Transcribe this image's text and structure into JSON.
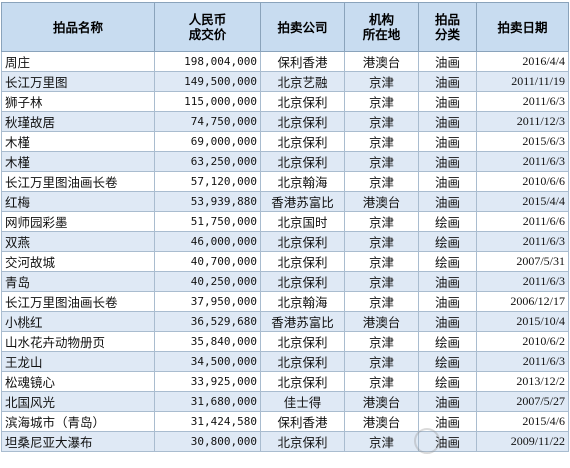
{
  "headers": [
    "拍品名称",
    "人民币\n成交价",
    "拍卖公司",
    "机构\n所在地",
    "拍品\n分类",
    "拍卖日期"
  ],
  "rows": [
    {
      "name": "周庄",
      "price": "198,004,000",
      "company": "保利香港",
      "region": "港澳台",
      "category": "油画",
      "date": "2016/4/4"
    },
    {
      "name": "长江万里图",
      "price": "149,500,000",
      "company": "北京艺融",
      "region": "京津",
      "category": "油画",
      "date": "2011/11/19"
    },
    {
      "name": "狮子林",
      "price": "115,000,000",
      "company": "北京保利",
      "region": "京津",
      "category": "油画",
      "date": "2011/6/3"
    },
    {
      "name": "秋瑾故居",
      "price": "74,750,000",
      "company": "北京保利",
      "region": "京津",
      "category": "油画",
      "date": "2011/12/3"
    },
    {
      "name": "木槿",
      "price": "69,000,000",
      "company": "北京保利",
      "region": "京津",
      "category": "油画",
      "date": "2015/6/3"
    },
    {
      "name": "木槿",
      "price": "63,250,000",
      "company": "北京保利",
      "region": "京津",
      "category": "油画",
      "date": "2011/6/3"
    },
    {
      "name": "长江万里图油画长卷",
      "price": "57,120,000",
      "company": "北京翰海",
      "region": "京津",
      "category": "油画",
      "date": "2010/6/6"
    },
    {
      "name": "红梅",
      "price": "53,939,880",
      "company": "香港苏富比",
      "region": "港澳台",
      "category": "油画",
      "date": "2015/4/4"
    },
    {
      "name": "网师园彩墨",
      "price": "51,750,000",
      "company": "北京国时",
      "region": "京津",
      "category": "绘画",
      "date": "2011/6/6"
    },
    {
      "name": "双燕",
      "price": "46,000,000",
      "company": "北京保利",
      "region": "京津",
      "category": "绘画",
      "date": "2011/6/3"
    },
    {
      "name": "交河故城",
      "price": "40,700,000",
      "company": "北京保利",
      "region": "京津",
      "category": "绘画",
      "date": "2007/5/31"
    },
    {
      "name": "青岛",
      "price": "40,250,000",
      "company": "北京保利",
      "region": "京津",
      "category": "油画",
      "date": "2011/6/3"
    },
    {
      "name": "长江万里图油画长卷",
      "price": "37,950,000",
      "company": "北京翰海",
      "region": "京津",
      "category": "油画",
      "date": "2006/12/17"
    },
    {
      "name": "小桃红",
      "price": "36,529,680",
      "company": "香港苏富比",
      "region": "港澳台",
      "category": "油画",
      "date": "2015/10/4"
    },
    {
      "name": "山水花卉动物册页",
      "price": "35,840,000",
      "company": "北京保利",
      "region": "京津",
      "category": "绘画",
      "date": "2010/6/2"
    },
    {
      "name": "王龙山",
      "price": "34,500,000",
      "company": "北京保利",
      "region": "京津",
      "category": "绘画",
      "date": "2011/6/3"
    },
    {
      "name": "松魂镜心",
      "price": "33,925,000",
      "company": "北京保利",
      "region": "京津",
      "category": "绘画",
      "date": "2013/12/2"
    },
    {
      "name": "北国风光",
      "price": "31,680,000",
      "company": "佳士得",
      "region": "港澳台",
      "category": "油画",
      "date": "2007/5/27"
    },
    {
      "name": "滨海城市（青岛）",
      "price": "31,424,580",
      "company": "保利香港",
      "region": "港澳台",
      "category": "油画",
      "date": "2015/4/6"
    },
    {
      "name": "坦桑尼亚大瀑布",
      "price": "30,800,000",
      "company": "北京保利",
      "region": "京津",
      "category": "油画",
      "date": "2009/11/22"
    }
  ],
  "watermark_icon": "watermark-logo-icon"
}
